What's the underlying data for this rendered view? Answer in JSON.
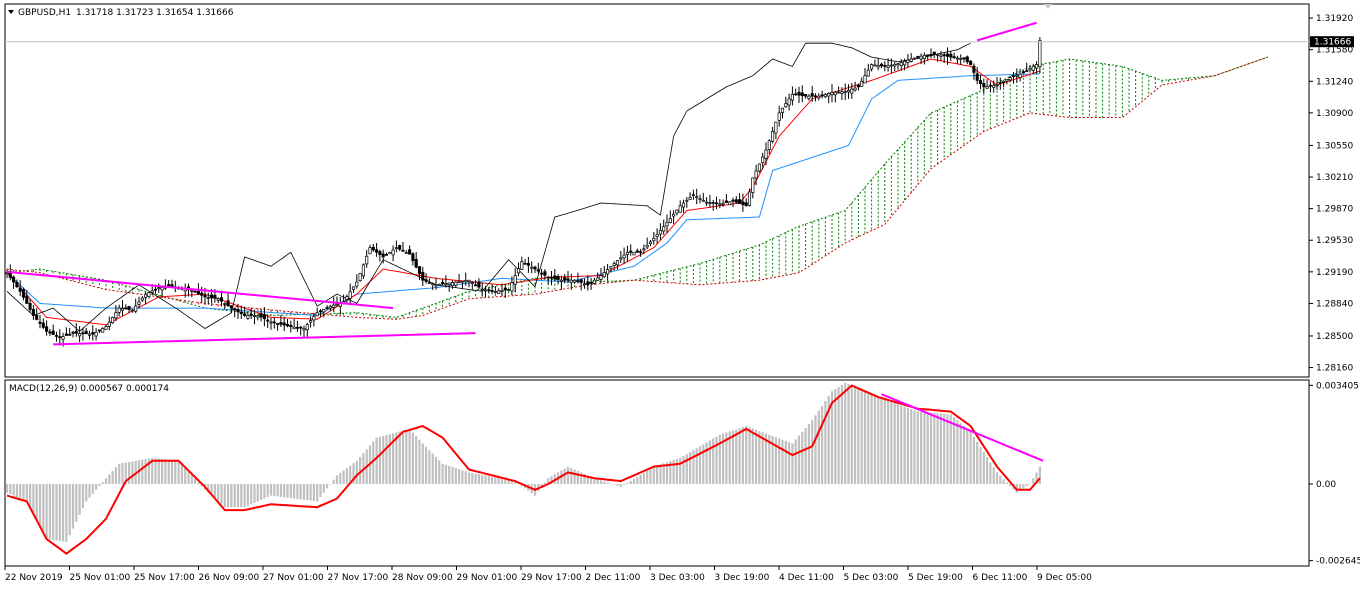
{
  "header": {
    "symbol": "GBPUSD,H1",
    "ohlc": "1.31718 1.31723 1.31654 1.31666",
    "menu_icon": "triangle-down-icon"
  },
  "macd_header": "MACD(12,26,9) 0.000567 0.000174",
  "current_price": "1.31666",
  "colors": {
    "bull_candle": "#000000",
    "tenkan": "#ff0000",
    "kijun": "#1e90ff",
    "chikou": "#000000",
    "cloud_bull": "#008000",
    "cloud_bear": "#cc0000",
    "trendline": "#ff00ff",
    "macd_hist": "#c0c0c0",
    "macd_signal": "#ff0000"
  },
  "chart_data": [
    {
      "type": "candlestick",
      "title": "GBPUSD,H1",
      "indicators": [
        "Ichimoku cloud",
        "Tenkan-sen",
        "Kijun-sen",
        "Chikou span"
      ],
      "x_ticks": [
        "22 Nov 2019",
        "25 Nov 01:00",
        "25 Nov 17:00",
        "26 Nov 09:00",
        "27 Nov 01:00",
        "27 Nov 17:00",
        "28 Nov 09:00",
        "29 Nov 01:00",
        "29 Nov 17:00",
        "2 Dec 11:00",
        "3 Dec 03:00",
        "3 Dec 19:00",
        "4 Dec 11:00",
        "5 Dec 03:00",
        "5 Dec 19:00",
        "6 Dec 11:00",
        "9 Dec 05:00"
      ],
      "y_ticks": [
        1.3192,
        1.3158,
        1.3124,
        1.309,
        1.3055,
        1.3021,
        1.2987,
        1.2953,
        1.2919,
        1.2885,
        1.285,
        1.2816
      ],
      "y_tick_labels": [
        "1.31920",
        "1.31580",
        "1.31240",
        "1.30900",
        "1.30550",
        "1.30210",
        "1.29870",
        "1.29530",
        "1.29190",
        "1.28840",
        "1.28500",
        "1.28160"
      ],
      "ylim": [
        1.2808,
        1.3205
      ],
      "close_anchors": [
        [
          0,
          1.2918
        ],
        [
          4,
          1.2898
        ],
        [
          8,
          1.2872
        ],
        [
          12,
          1.2855
        ],
        [
          16,
          1.2848
        ],
        [
          20,
          1.2853
        ],
        [
          26,
          1.2852
        ],
        [
          30,
          1.286
        ],
        [
          34,
          1.288
        ],
        [
          38,
          1.2878
        ],
        [
          42,
          1.2895
        ],
        [
          46,
          1.2902
        ],
        [
          50,
          1.2903
        ],
        [
          56,
          1.2899
        ],
        [
          60,
          1.2892
        ],
        [
          64,
          1.289
        ],
        [
          68,
          1.288
        ],
        [
          72,
          1.2872
        ],
        [
          76,
          1.2872
        ],
        [
          80,
          1.2865
        ],
        [
          86,
          1.286
        ],
        [
          90,
          1.2858
        ],
        [
          94,
          1.2875
        ],
        [
          98,
          1.2882
        ],
        [
          102,
          1.2887
        ],
        [
          106,
          1.2908
        ],
        [
          110,
          1.2945
        ],
        [
          114,
          1.2935
        ],
        [
          118,
          1.2945
        ],
        [
          122,
          1.2938
        ],
        [
          126,
          1.291
        ],
        [
          130,
          1.2905
        ],
        [
          136,
          1.2908
        ],
        [
          140,
          1.291
        ],
        [
          144,
          1.29
        ],
        [
          148,
          1.2898
        ],
        [
          152,
          1.29
        ],
        [
          156,
          1.293
        ],
        [
          160,
          1.2922
        ],
        [
          164,
          1.2913
        ],
        [
          168,
          1.291
        ],
        [
          172,
          1.291
        ],
        [
          176,
          1.2905
        ],
        [
          180,
          1.2915
        ],
        [
          184,
          1.2928
        ],
        [
          188,
          1.294
        ],
        [
          192,
          1.294
        ],
        [
          196,
          1.2955
        ],
        [
          200,
          1.2972
        ],
        [
          204,
          1.299
        ],
        [
          208,
          1.3002
        ],
        [
          212,
          1.2994
        ],
        [
          216,
          1.2992
        ],
        [
          220,
          1.2995
        ],
        [
          224,
          1.299
        ],
        [
          226,
          1.302
        ],
        [
          230,
          1.305
        ],
        [
          234,
          1.309
        ],
        [
          238,
          1.311
        ],
        [
          242,
          1.3108
        ],
        [
          246,
          1.3108
        ],
        [
          250,
          1.3112
        ],
        [
          254,
          1.3113
        ],
        [
          258,
          1.3118
        ],
        [
          262,
          1.3142
        ],
        [
          266,
          1.314
        ],
        [
          270,
          1.3143
        ],
        [
          274,
          1.3148
        ],
        [
          278,
          1.3152
        ],
        [
          282,
          1.3153
        ],
        [
          286,
          1.315
        ],
        [
          290,
          1.3148
        ],
        [
          292,
          1.3142
        ],
        [
          294,
          1.3125
        ],
        [
          296,
          1.3118
        ],
        [
          300,
          1.312
        ],
        [
          304,
          1.3128
        ],
        [
          308,
          1.3133
        ],
        [
          310,
          1.3138
        ],
        [
          312,
          1.3142
        ],
        [
          313,
          1.3168
        ]
      ],
      "tenkan_anchors": [
        [
          0,
          1.2918
        ],
        [
          12,
          1.287
        ],
        [
          30,
          1.2862
        ],
        [
          46,
          1.2892
        ],
        [
          60,
          1.2895
        ],
        [
          80,
          1.287
        ],
        [
          94,
          1.2868
        ],
        [
          106,
          1.2895
        ],
        [
          114,
          1.2922
        ],
        [
          130,
          1.2912
        ],
        [
          150,
          1.2905
        ],
        [
          164,
          1.2913
        ],
        [
          180,
          1.2915
        ],
        [
          196,
          1.2945
        ],
        [
          206,
          1.2985
        ],
        [
          222,
          1.2993
        ],
        [
          226,
          1.301
        ],
        [
          234,
          1.3065
        ],
        [
          244,
          1.3105
        ],
        [
          262,
          1.3125
        ],
        [
          280,
          1.3148
        ],
        [
          292,
          1.314
        ],
        [
          300,
          1.312
        ],
        [
          313,
          1.3135
        ]
      ],
      "kijun_anchors": [
        [
          0,
          1.2918
        ],
        [
          10,
          1.2885
        ],
        [
          30,
          1.288
        ],
        [
          60,
          1.288
        ],
        [
          94,
          1.2872
        ],
        [
          106,
          1.2895
        ],
        [
          130,
          1.2902
        ],
        [
          150,
          1.2912
        ],
        [
          170,
          1.2908
        ],
        [
          190,
          1.2925
        ],
        [
          200,
          1.295
        ],
        [
          206,
          1.2975
        ],
        [
          228,
          1.2978
        ],
        [
          232,
          1.3028
        ],
        [
          255,
          1.3055
        ],
        [
          262,
          1.3105
        ],
        [
          270,
          1.3125
        ],
        [
          292,
          1.313
        ],
        [
          313,
          1.3132
        ]
      ],
      "chikou_anchors": [
        [
          0,
          1.2898
        ],
        [
          8,
          1.2872
        ],
        [
          14,
          1.288
        ],
        [
          22,
          1.2855
        ],
        [
          30,
          1.288
        ],
        [
          40,
          1.2905
        ],
        [
          52,
          1.2878
        ],
        [
          60,
          1.2858
        ],
        [
          68,
          1.2875
        ],
        [
          72,
          1.2935
        ],
        [
          80,
          1.2925
        ],
        [
          86,
          1.294
        ],
        [
          94,
          1.2882
        ],
        [
          100,
          1.2895
        ],
        [
          106,
          1.2885
        ],
        [
          114,
          1.2932
        ],
        [
          130,
          1.2905
        ],
        [
          144,
          1.2898
        ],
        [
          152,
          1.2932
        ],
        [
          160,
          1.2903
        ],
        [
          166,
          1.2978
        ],
        [
          170,
          1.2982
        ],
        [
          180,
          1.2993
        ],
        [
          194,
          1.299
        ],
        [
          198,
          1.298
        ],
        [
          202,
          1.3065
        ],
        [
          206,
          1.3092
        ],
        [
          212,
          1.3105
        ],
        [
          218,
          1.3118
        ],
        [
          226,
          1.313
        ],
        [
          232,
          1.3148
        ],
        [
          238,
          1.314
        ],
        [
          242,
          1.3165
        ],
        [
          250,
          1.3165
        ],
        [
          256,
          1.316
        ],
        [
          262,
          1.315
        ],
        [
          270,
          1.3145
        ],
        [
          278,
          1.315
        ],
        [
          284,
          1.3155
        ],
        [
          288,
          1.3158
        ],
        [
          292,
          1.3165
        ]
      ],
      "span_a_anchors": [
        [
          0,
          1.2918
        ],
        [
          10,
          1.2922
        ],
        [
          30,
          1.291
        ],
        [
          60,
          1.288
        ],
        [
          80,
          1.2872
        ],
        [
          106,
          1.2875
        ],
        [
          118,
          1.287
        ],
        [
          126,
          1.288
        ],
        [
          140,
          1.2898
        ],
        [
          160,
          1.2912
        ],
        [
          176,
          1.2908
        ],
        [
          190,
          1.291
        ],
        [
          210,
          1.2928
        ],
        [
          228,
          1.2948
        ],
        [
          240,
          1.2968
        ],
        [
          254,
          1.2985
        ],
        [
          266,
          1.3035
        ],
        [
          280,
          1.309
        ],
        [
          296,
          1.3115
        ],
        [
          310,
          1.314
        ],
        [
          322,
          1.3148
        ],
        [
          338,
          1.314
        ],
        [
          350,
          1.3125
        ],
        [
          366,
          1.313
        ],
        [
          382,
          1.315
        ]
      ],
      "span_b_anchors": [
        [
          0,
          1.2922
        ],
        [
          10,
          1.2918
        ],
        [
          30,
          1.29
        ],
        [
          60,
          1.2885
        ],
        [
          80,
          1.2878
        ],
        [
          106,
          1.287
        ],
        [
          118,
          1.2868
        ],
        [
          126,
          1.2872
        ],
        [
          140,
          1.289
        ],
        [
          160,
          1.2895
        ],
        [
          176,
          1.2905
        ],
        [
          190,
          1.291
        ],
        [
          210,
          1.2905
        ],
        [
          228,
          1.291
        ],
        [
          240,
          1.2918
        ],
        [
          254,
          1.295
        ],
        [
          266,
          1.297
        ],
        [
          280,
          1.303
        ],
        [
          296,
          1.307
        ],
        [
          310,
          1.309
        ],
        [
          322,
          1.3085
        ],
        [
          338,
          1.3085
        ],
        [
          350,
          1.312
        ],
        [
          366,
          1.313
        ],
        [
          382,
          1.315
        ]
      ],
      "trendlines": [
        {
          "x1": 0,
          "y1": 1.2919,
          "x2": 117,
          "y2": 1.288
        },
        {
          "x1": 14,
          "y1": 1.2841,
          "x2": 142,
          "y2": 1.2853
        },
        {
          "x1": 294,
          "y1": 1.3168,
          "x2": 312,
          "y2": 1.3187
        }
      ]
    },
    {
      "type": "histogram+line",
      "title": "MACD(12,26,9) 0.000567 0.000174",
      "y_ticks": [
        0.003405,
        0.0,
        -0.002645
      ],
      "y_tick_labels": [
        "0.003405",
        "0.00",
        "-0.002645"
      ],
      "ylim": [
        -0.00276,
        0.00352
      ],
      "hist_anchors": [
        [
          0,
          -0.0003
        ],
        [
          6,
          -0.0006
        ],
        [
          12,
          -0.0019
        ],
        [
          18,
          -0.002
        ],
        [
          24,
          -0.0006
        ],
        [
          30,
          0.0002
        ],
        [
          34,
          0.0007
        ],
        [
          44,
          0.0009
        ],
        [
          52,
          0.0008
        ],
        [
          60,
          -0.0002
        ],
        [
          66,
          -0.0008
        ],
        [
          72,
          -0.0008
        ],
        [
          80,
          -0.0004
        ],
        [
          94,
          -0.0006
        ],
        [
          100,
          0.0003
        ],
        [
          106,
          0.0008
        ],
        [
          112,
          0.0016
        ],
        [
          122,
          0.0019
        ],
        [
          126,
          0.0014
        ],
        [
          132,
          0.0007
        ],
        [
          140,
          0.0004
        ],
        [
          154,
          0.0001
        ],
        [
          160,
          -0.0004
        ],
        [
          164,
          0.0002
        ],
        [
          170,
          0.0006
        ],
        [
          178,
          0.0002
        ],
        [
          186,
          -0.0001
        ],
        [
          196,
          0.0006
        ],
        [
          204,
          0.0009
        ],
        [
          216,
          0.0017
        ],
        [
          224,
          0.002
        ],
        [
          238,
          0.0014
        ],
        [
          244,
          0.0022
        ],
        [
          250,
          0.0032
        ],
        [
          254,
          0.0035
        ],
        [
          264,
          0.003
        ],
        [
          276,
          0.0025
        ],
        [
          286,
          0.0024
        ],
        [
          292,
          0.0018
        ],
        [
          300,
          0.0004
        ],
        [
          306,
          -0.0003
        ],
        [
          310,
          0.0
        ],
        [
          313,
          0.0006
        ]
      ],
      "signal_anchors": [
        [
          0,
          -0.0004
        ],
        [
          6,
          -0.0006
        ],
        [
          12,
          -0.0019
        ],
        [
          18,
          -0.0024
        ],
        [
          24,
          -0.0019
        ],
        [
          30,
          -0.0012
        ],
        [
          36,
          0.0001
        ],
        [
          44,
          0.0008
        ],
        [
          52,
          0.0008
        ],
        [
          60,
          -0.0001
        ],
        [
          66,
          -0.0009
        ],
        [
          72,
          -0.0009
        ],
        [
          80,
          -0.0007
        ],
        [
          94,
          -0.0008
        ],
        [
          100,
          -0.0005
        ],
        [
          106,
          0.0003
        ],
        [
          112,
          0.0009
        ],
        [
          120,
          0.0018
        ],
        [
          126,
          0.002
        ],
        [
          132,
          0.0016
        ],
        [
          140,
          0.0005
        ],
        [
          154,
          0.0001
        ],
        [
          160,
          -0.0002
        ],
        [
          164,
          0.0
        ],
        [
          170,
          0.0004
        ],
        [
          178,
          0.0002
        ],
        [
          186,
          0.0001
        ],
        [
          196,
          0.0006
        ],
        [
          204,
          0.0007
        ],
        [
          216,
          0.0014
        ],
        [
          224,
          0.0019
        ],
        [
          238,
          0.001
        ],
        [
          244,
          0.0013
        ],
        [
          250,
          0.0028
        ],
        [
          256,
          0.0034
        ],
        [
          264,
          0.003
        ],
        [
          276,
          0.0026
        ],
        [
          286,
          0.0025
        ],
        [
          292,
          0.002
        ],
        [
          300,
          0.0006
        ],
        [
          306,
          -0.0002
        ],
        [
          310,
          -0.0002
        ],
        [
          313,
          0.0002
        ]
      ],
      "trendline": {
        "x1": 265,
        "y1": 0.0031,
        "x2": 314,
        "y2": 0.0008
      }
    }
  ]
}
